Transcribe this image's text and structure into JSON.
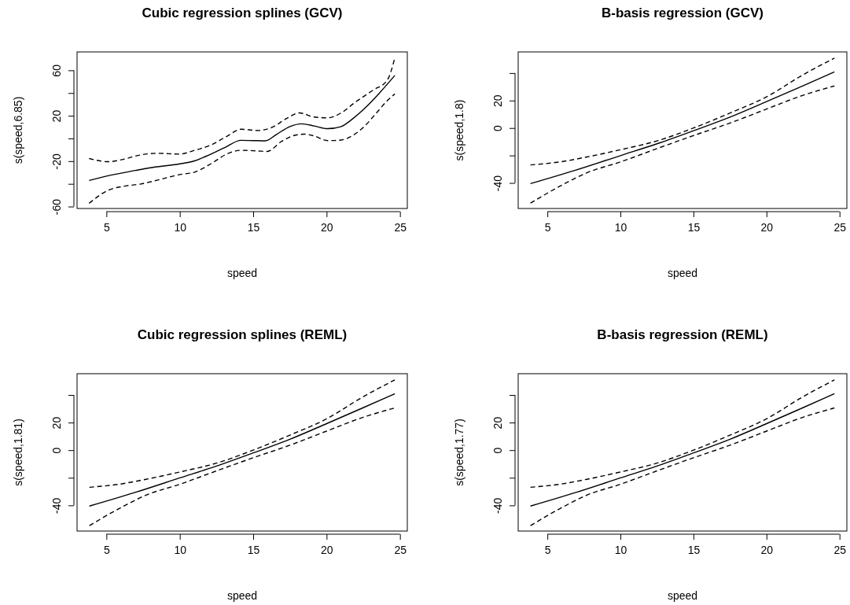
{
  "chart_data": [
    {
      "type": "line",
      "title": "Cubic regression splines (GCV)",
      "xlabel": "speed",
      "ylabel": "s(speed,6.85)",
      "xlim": [
        3.0,
        25.5
      ],
      "ylim": [
        -61.7,
        76.2
      ],
      "xticks": [
        5,
        10,
        15,
        20,
        25
      ],
      "yticks": [
        -60,
        {
          "value": -40,
          "label": null
        },
        -20,
        {
          "value": 0,
          "label": null
        },
        20,
        {
          "value": 40,
          "label": null
        },
        60
      ],
      "series": [
        {
          "color": "#000000",
          "line_style": "solid",
          "x": [
            3.82,
            5,
            6.97,
            7.9,
            10,
            11.0,
            11.77,
            13.06,
            14.17,
            15.0,
            15.83,
            16.57,
            17.5,
            18.3,
            19.15,
            20.07,
            21.0,
            21.7,
            22.66,
            23.58,
            24.65
          ],
          "values": [
            -37.0,
            -33.2,
            -28.2,
            -26.0,
            -22.4,
            -19.8,
            -15.8,
            -8.1,
            -1.7,
            -1.9,
            -2.1,
            3.4,
            10.5,
            12.9,
            11.0,
            8.6,
            10.5,
            16.5,
            27.3,
            39.7,
            55.5
          ]
        },
        {
          "color": "#000000",
          "line_style": "dashed",
          "x": [
            3.82,
            5.13,
            6.24,
            7.34,
            8.45,
            10,
            11.0,
            12.05,
            13.25,
            14.17,
            15.28,
            16.2,
            17.3,
            18.14,
            19.15,
            20.07,
            21.0,
            21.92,
            23.2,
            24.13,
            24.65
          ],
          "values": [
            -17.7,
            -20.5,
            -18.1,
            -14.5,
            -13.1,
            -13.8,
            -10.5,
            -6.2,
            2.2,
            8.1,
            7.0,
            9.3,
            17.7,
            22.5,
            18.9,
            18.2,
            22.5,
            31.6,
            42.8,
            51.2,
            71.0
          ]
        },
        {
          "color": "#000000",
          "line_style": "dashed",
          "x": [
            3.82,
            5.13,
            6.24,
            7.34,
            8.45,
            10,
            11.0,
            12.14,
            13.25,
            14.17,
            15.28,
            15.92,
            16.94,
            17.68,
            18.5,
            19.15,
            20.07,
            21.0,
            21.73,
            22.47,
            23.4,
            24.13,
            24.65
          ],
          "values": [
            -57.1,
            -45.6,
            -42.0,
            -40.1,
            -36.8,
            -31.8,
            -29.7,
            -22.2,
            -13.4,
            -10.5,
            -11.0,
            -11.5,
            -2.6,
            2.2,
            3.8,
            2.2,
            -1.9,
            -1.4,
            2.2,
            9.3,
            22.5,
            33.2,
            39.2
          ]
        }
      ]
    },
    {
      "type": "line",
      "title": "B-basis regression (GCV)",
      "xlabel": "speed",
      "ylabel": "s(speed,1.8)",
      "xlim": [
        3.0,
        25.5
      ],
      "ylim": [
        -58.6,
        55.4
      ],
      "xticks": [
        5,
        10,
        15,
        20,
        25
      ],
      "yticks": [
        -40,
        {
          "value": -20,
          "label": null
        },
        0,
        20,
        {
          "value": 40,
          "label": null
        }
      ],
      "series": [
        {
          "color": "#000000",
          "line_style": "solid",
          "x": [
            3.84,
            6.96,
            10,
            12.5,
            15,
            17.5,
            20,
            22.46,
            24.65
          ],
          "values": [
            -40.5,
            -30.6,
            -20.1,
            -11.5,
            -2.0,
            7.9,
            19.2,
            30.6,
            40.9
          ]
        },
        {
          "color": "#000000",
          "line_style": "dashed",
          "x": [
            3.84,
            5.85,
            7.7,
            10,
            12.5,
            15,
            17.5,
            20,
            22.46,
            24.65
          ],
          "values": [
            -26.9,
            -24.7,
            -21.1,
            -15.8,
            -9.4,
            0,
            10.9,
            22.7,
            38.5,
            50.9
          ]
        },
        {
          "color": "#000000",
          "line_style": "dashed",
          "x": [
            3.84,
            5.85,
            7.7,
            10,
            12.5,
            15,
            17.5,
            20,
            22.46,
            24.65
          ],
          "values": [
            -54.7,
            -42.4,
            -32.6,
            -24.7,
            -15.0,
            -5.5,
            3.6,
            13.8,
            23.7,
            30.6
          ]
        }
      ]
    },
    {
      "type": "line",
      "title": "Cubic regression splines (REML)",
      "xlabel": "speed",
      "ylabel": "s(speed,1.81)",
      "xlim": [
        3.0,
        25.5
      ],
      "ylim": [
        -58.6,
        55.4
      ],
      "xticks": [
        5,
        10,
        15,
        20,
        25
      ],
      "yticks": [
        -40,
        {
          "value": -20,
          "label": null
        },
        0,
        20,
        {
          "value": 40,
          "label": null
        }
      ],
      "series": [
        {
          "color": "#000000",
          "line_style": "solid",
          "x": [
            3.84,
            6.96,
            10,
            12.5,
            15,
            17.5,
            20,
            22.46,
            24.65
          ],
          "values": [
            -40.5,
            -30.6,
            -20.1,
            -11.5,
            -2.0,
            7.9,
            19.2,
            30.6,
            40.9
          ]
        },
        {
          "color": "#000000",
          "line_style": "dashed",
          "x": [
            3.84,
            5.85,
            7.7,
            10,
            12.5,
            15,
            17.5,
            20,
            22.46,
            24.65
          ],
          "values": [
            -26.9,
            -24.7,
            -21.1,
            -15.8,
            -9.4,
            0,
            10.9,
            22.7,
            38.5,
            50.9
          ]
        },
        {
          "color": "#000000",
          "line_style": "dashed",
          "x": [
            3.84,
            5.85,
            7.7,
            10,
            12.5,
            15,
            17.5,
            20,
            22.46,
            24.65
          ],
          "values": [
            -54.7,
            -42.4,
            -32.6,
            -24.7,
            -15.0,
            -5.5,
            3.6,
            13.8,
            23.7,
            30.6
          ]
        }
      ]
    },
    {
      "type": "line",
      "title": "B-basis regression (REML)",
      "xlabel": "speed",
      "ylabel": "s(speed,1.77)",
      "xlim": [
        3.0,
        25.5
      ],
      "ylim": [
        -58.6,
        55.4
      ],
      "xticks": [
        5,
        10,
        15,
        20,
        25
      ],
      "yticks": [
        -40,
        {
          "value": -20,
          "label": null
        },
        0,
        20,
        {
          "value": 40,
          "label": null
        }
      ],
      "series": [
        {
          "color": "#000000",
          "line_style": "solid",
          "x": [
            3.84,
            6.96,
            10,
            12.5,
            15,
            17.5,
            20,
            22.46,
            24.65
          ],
          "values": [
            -40.5,
            -30.6,
            -20.1,
            -11.5,
            -2.0,
            7.9,
            19.2,
            30.6,
            40.9
          ]
        },
        {
          "color": "#000000",
          "line_style": "dashed",
          "x": [
            3.84,
            5.85,
            7.7,
            10,
            12.5,
            15,
            17.5,
            20,
            22.46,
            24.65
          ],
          "values": [
            -26.9,
            -24.7,
            -21.1,
            -15.8,
            -9.4,
            0,
            10.9,
            22.7,
            38.5,
            50.9
          ]
        },
        {
          "color": "#000000",
          "line_style": "dashed",
          "x": [
            3.84,
            5.85,
            7.7,
            10,
            12.5,
            15,
            17.5,
            20,
            22.46,
            24.65
          ],
          "values": [
            -54.7,
            -42.4,
            -32.6,
            -24.7,
            -15.0,
            -5.5,
            3.6,
            13.8,
            23.7,
            30.6
          ]
        }
      ]
    }
  ]
}
